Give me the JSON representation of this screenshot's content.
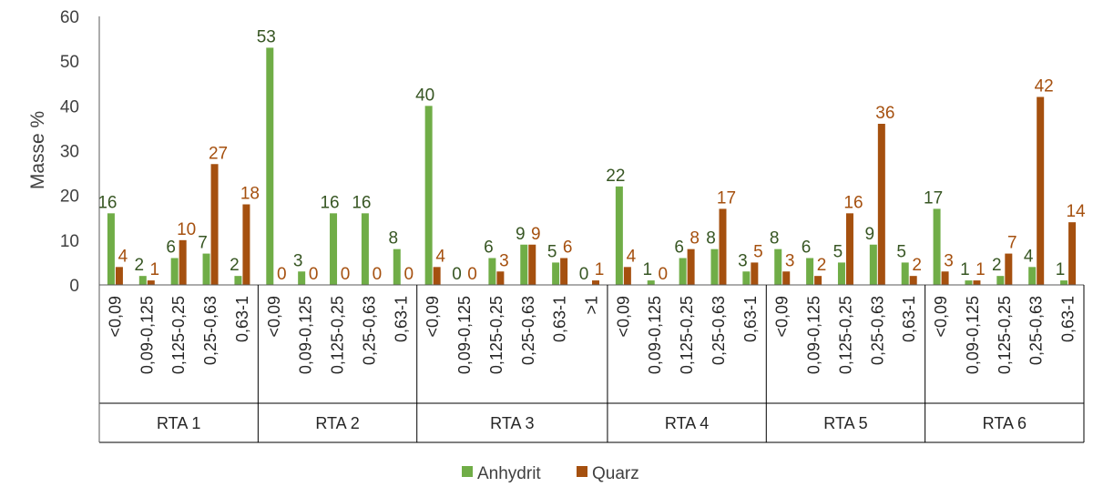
{
  "chart_data": {
    "type": "bar",
    "ylabel": "Masse %",
    "ylim": [
      0,
      60
    ],
    "yticks": [
      0,
      10,
      20,
      30,
      40,
      50,
      60
    ],
    "grid": false,
    "legend_position": "bottom",
    "groups": [
      {
        "name": "RTA 1",
        "categories": [
          "<0,09",
          "0,09-0,125",
          "0,125-0,25",
          "0,25-0,63",
          "0,63-1"
        ],
        "anhydrit": [
          16,
          2,
          6,
          7,
          2
        ],
        "quarz": [
          4,
          1,
          10,
          27,
          18
        ]
      },
      {
        "name": "RTA 2",
        "categories": [
          "<0,09",
          "0,09-0,125",
          "0,125-0,25",
          "0,25-0,63",
          "0,63-1"
        ],
        "anhydrit": [
          53,
          3,
          16,
          16,
          8
        ],
        "quarz": [
          0,
          0,
          0,
          0,
          0
        ]
      },
      {
        "name": "RTA 3",
        "categories": [
          "<0,09",
          "0,09-0,125",
          "0,125-0,25",
          "0,25-0,63",
          "0,63-1",
          ">1"
        ],
        "anhydrit": [
          40,
          0,
          6,
          9,
          5,
          0
        ],
        "quarz": [
          4,
          0,
          3,
          9,
          6,
          1
        ]
      },
      {
        "name": "RTA 4",
        "categories": [
          "<0,09",
          "0,09-0,125",
          "0,125-0,25",
          "0,25-0,63",
          "0,63-1"
        ],
        "anhydrit": [
          22,
          1,
          6,
          8,
          3
        ],
        "quarz": [
          4,
          0,
          8,
          17,
          5
        ]
      },
      {
        "name": "RTA 5",
        "categories": [
          "<0,09",
          "0,09-0,125",
          "0,125-0,25",
          "0,25-0,63",
          "0,63-1"
        ],
        "anhydrit": [
          8,
          6,
          5,
          9,
          5
        ],
        "quarz": [
          3,
          2,
          16,
          36,
          2
        ]
      },
      {
        "name": "RTA 6",
        "categories": [
          "<0,09",
          "0,09-0,125",
          "0,125-0,25",
          "0,25-0,63",
          "0,63-1"
        ],
        "anhydrit": [
          17,
          1,
          2,
          4,
          1
        ],
        "quarz": [
          3,
          1,
          7,
          42,
          14
        ]
      }
    ],
    "series": [
      {
        "key": "anhydrit",
        "name": "Anhydrit",
        "color": "#70ad47",
        "label_color": "#375623"
      },
      {
        "key": "quarz",
        "name": "Quarz",
        "color": "#a5500f",
        "label_color": "#a5500f"
      }
    ]
  }
}
